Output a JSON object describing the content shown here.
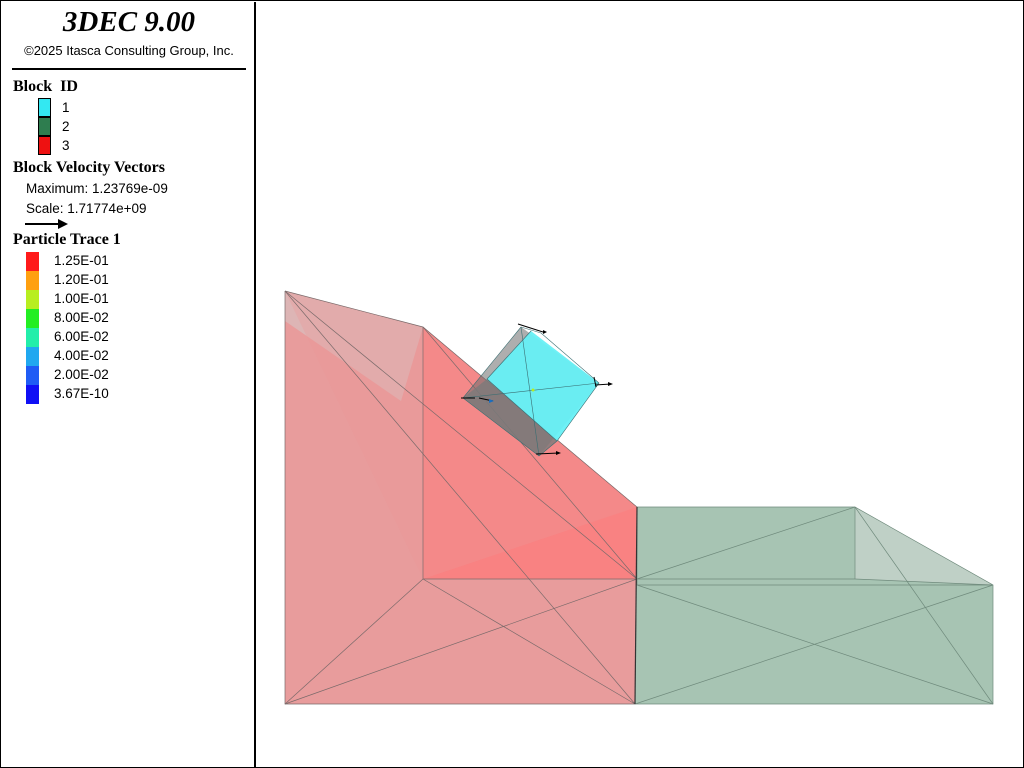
{
  "app": {
    "title": "3DEC 9.00",
    "copyright": "©2025 Itasca Consulting Group, Inc."
  },
  "legend": {
    "block_id": {
      "heading": "Block  ID",
      "items": [
        {
          "label": "1",
          "color": "#33e8f2"
        },
        {
          "label": "2",
          "color": "#2e7d4f"
        },
        {
          "label": "3",
          "color": "#ee1111"
        }
      ]
    },
    "velocity_vectors": {
      "heading": "Block Velocity Vectors",
      "maximum": "Maximum: 1.23769e-09",
      "scale": "Scale: 1.71774e+09",
      "arrow_icon": "right-arrow-icon"
    },
    "particle_trace": {
      "heading": "Particle Trace 1",
      "items": [
        {
          "label": "1.25E-01",
          "color": "#ff1a1a"
        },
        {
          "label": "1.20E-01",
          "color": "#ffa010"
        },
        {
          "label": "1.00E-01",
          "color": "#b8ee20"
        },
        {
          "label": "8.00E-02",
          "color": "#22ee22"
        },
        {
          "label": "6.00E-02",
          "color": "#22eeaa"
        },
        {
          "label": "4.00E-02",
          "color": "#20a8f0"
        },
        {
          "label": "2.00E-02",
          "color": "#1f5cf5"
        },
        {
          "label": "3.67E-10",
          "color": "#1010f5"
        }
      ]
    }
  },
  "colors": {
    "block_red": "#e88888",
    "block_red_dark": "#ff7070",
    "block_green": "#a7c4b3",
    "block_cyan": "#66f0f5",
    "block_gray": "#c8c0bc"
  }
}
